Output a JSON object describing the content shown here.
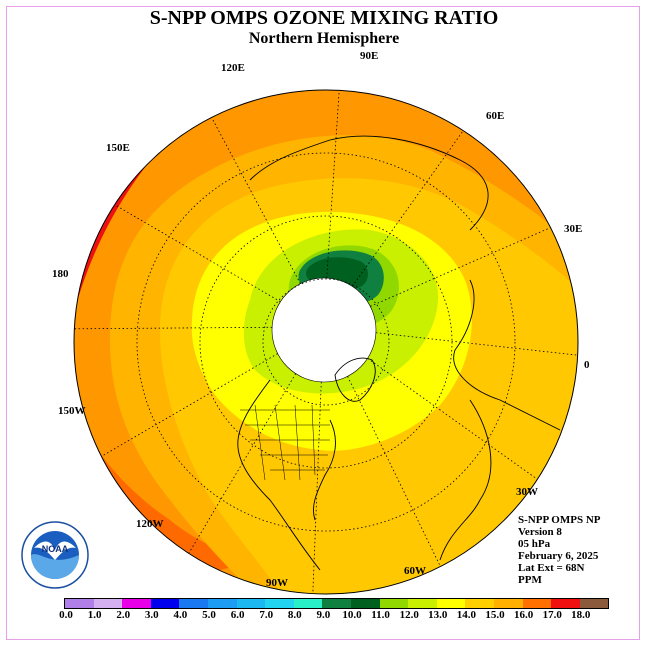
{
  "header": {
    "title": "S-NPP OMPS OZONE MIXING RATIO",
    "subtitle": "Northern Hemisphere"
  },
  "longitude_labels": {
    "lon_120e": "120E",
    "lon_90e": "90E",
    "lon_60e": "60E",
    "lon_30e": "30E",
    "lon_0": "0",
    "lon_30w": "30W",
    "lon_60w": "60W",
    "lon_90w": "90W",
    "lon_120w": "120W",
    "lon_150w": "150W",
    "lon_180": "180",
    "lon_150e": "150E"
  },
  "info": {
    "product": "S-NPP OMPS NP",
    "version": "Version 8",
    "level": "05 hPa",
    "date": "February 6, 2025",
    "lat_ext": "Lat Ext = 68N",
    "units": "PPM"
  },
  "logo": {
    "text": "NOAA",
    "ring_text": "NATIONAL OCEANIC AND ATMOSPHERIC ADMINISTRATION · U.S. DEPARTMENT OF COMMERCE"
  },
  "colorbar": {
    "colors": [
      "#b07fe8",
      "#d4b0f0",
      "#e800e8",
      "#0000ee",
      "#1a78f0",
      "#1c9cf2",
      "#1cb8f2",
      "#22d4f0",
      "#2af0c8",
      "#108040",
      "#006020",
      "#90d800",
      "#c8f000",
      "#ffff00",
      "#ffd000",
      "#ffb000",
      "#ff7000",
      "#f01010",
      "#8b5a3c"
    ],
    "ticks": [
      "0.0",
      "1.0",
      "2.0",
      "3.0",
      "4.0",
      "5.0",
      "6.0",
      "7.0",
      "8.0",
      "9.0",
      "10.0",
      "11.0",
      "12.0",
      "13.0",
      "14.0",
      "15.0",
      "16.0",
      "17.0",
      "18.0"
    ]
  }
}
